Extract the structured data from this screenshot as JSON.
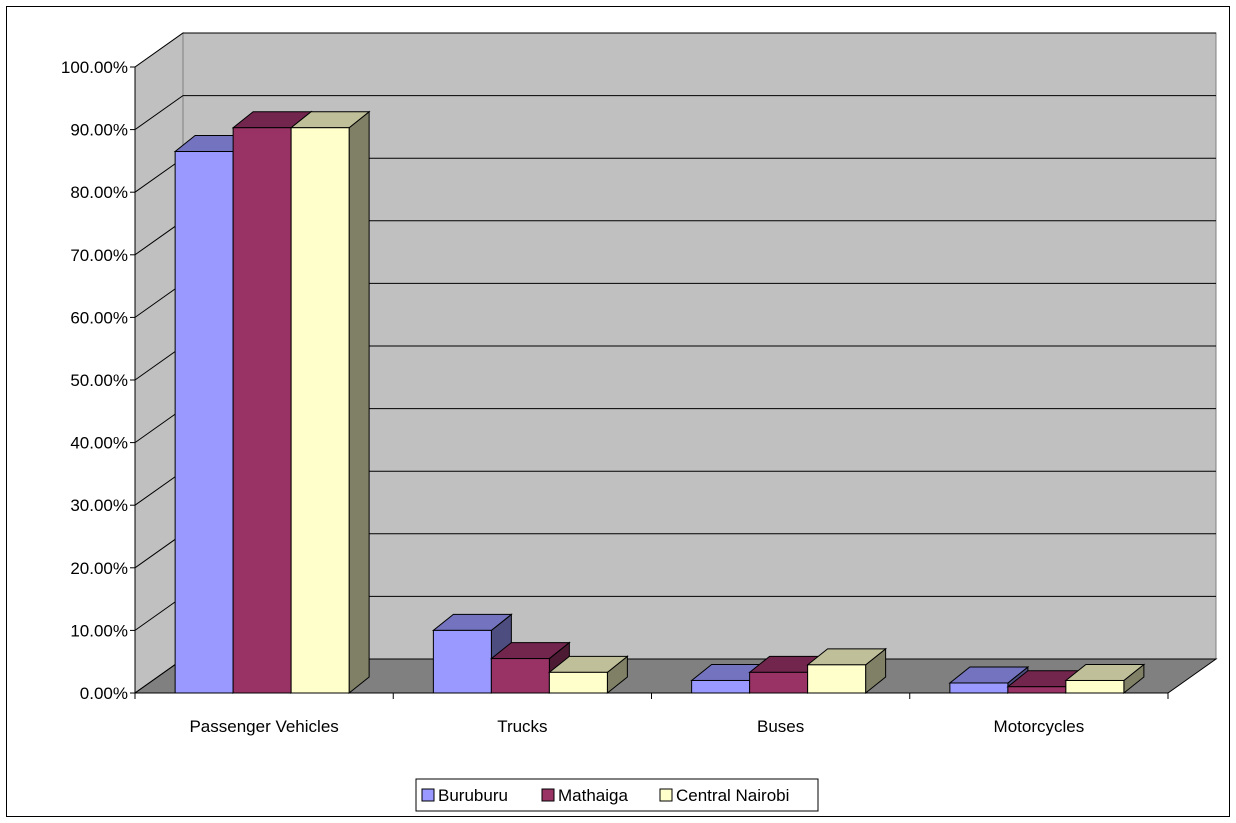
{
  "chart_data": {
    "type": "bar",
    "title": "",
    "xlabel": "",
    "ylabel": "",
    "categories": [
      "Passenger Vehicles",
      "Trucks",
      "Buses",
      "Motorcycles"
    ],
    "series": [
      {
        "name": "Buruburu",
        "values": [
          86.5,
          10.0,
          2.0,
          1.6
        ]
      },
      {
        "name": "Mathaiga",
        "values": [
          90.3,
          5.5,
          3.3,
          1.0
        ]
      },
      {
        "name": "Central Nairobi",
        "values": [
          90.3,
          3.3,
          4.5,
          2.0
        ]
      }
    ],
    "ylim": [
      0,
      100
    ],
    "yticks": [
      0,
      10,
      20,
      30,
      40,
      50,
      60,
      70,
      80,
      90,
      100
    ],
    "ytick_labels": [
      "0.00%",
      "10.00%",
      "20.00%",
      "30.00%",
      "40.00%",
      "50.00%",
      "60.00%",
      "70.00%",
      "80.00%",
      "90.00%",
      "100.00%"
    ],
    "grid": true,
    "legend": "bottom",
    "colors": {
      "Buruburu": "#9999ff",
      "Mathaiga": "#993366",
      "Central Nairobi": "#ffffcc",
      "wall": "#c0c0c0",
      "floor": "#808080",
      "gridline": "#000000"
    }
  }
}
